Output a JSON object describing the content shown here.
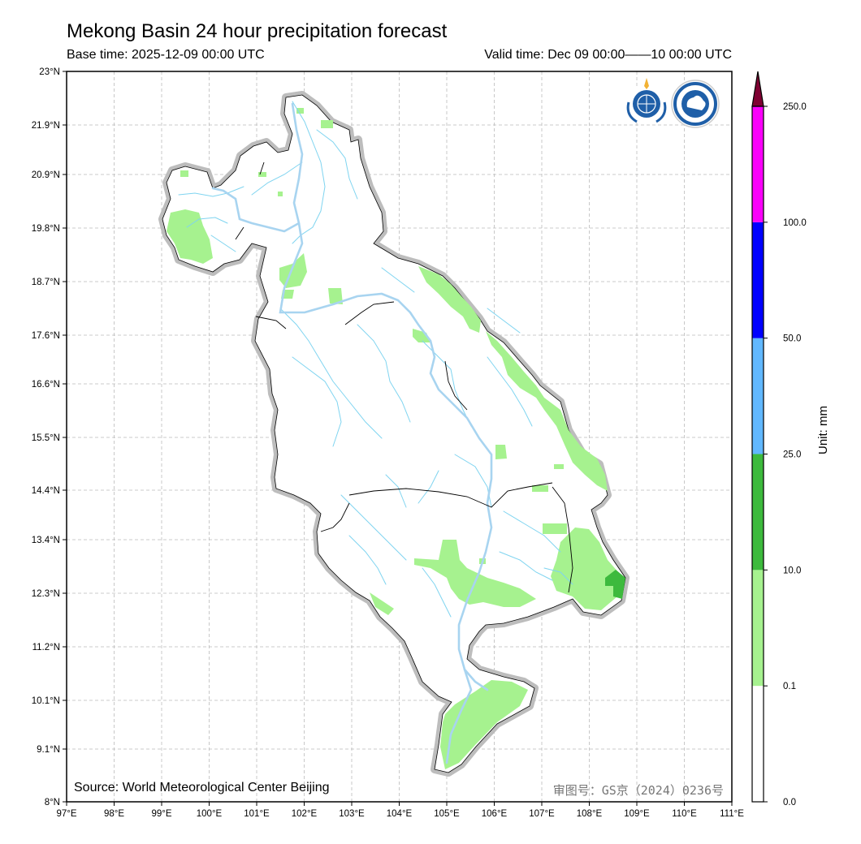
{
  "header": {
    "title": "Mekong Basin 24 hour precipitation forecast",
    "base_time": "Base time: 2025-12-09 00:00 UTC",
    "valid_time": "Valid time: Dec 09 00:00——10 00:00 UTC"
  },
  "map": {
    "lat_labels": [
      "23°N",
      "21.9°N",
      "20.9°N",
      "19.8°N",
      "18.7°N",
      "17.6°N",
      "16.6°N",
      "15.5°N",
      "14.4°N",
      "13.4°N",
      "12.3°N",
      "11.2°N",
      "10.1°N",
      "9.1°N",
      "8°N"
    ],
    "lon_labels": [
      "97°E",
      "98°E",
      "99°E",
      "100°E",
      "101°E",
      "102°E",
      "103°E",
      "104°E",
      "105°E",
      "106°E",
      "107°E",
      "108°E",
      "109°E",
      "110°E",
      "111°E"
    ],
    "source": "Source: World Meteorological Center Beijing",
    "approval_number": "审图号：GS京（2024）0236号",
    "logos": [
      "wmo-logo",
      "cma-logo"
    ]
  },
  "colorbar": {
    "unit_label": "Unit: mm",
    "levels": [
      "0.0",
      "0.1",
      "10.0",
      "25.0",
      "50.0",
      "100.0",
      "250.0"
    ],
    "colors": [
      "#ffffff",
      "#a6f28f",
      "#3dba3d",
      "#61b8ff",
      "#0000ff",
      "#fa00fa",
      "#7f0032"
    ]
  }
}
